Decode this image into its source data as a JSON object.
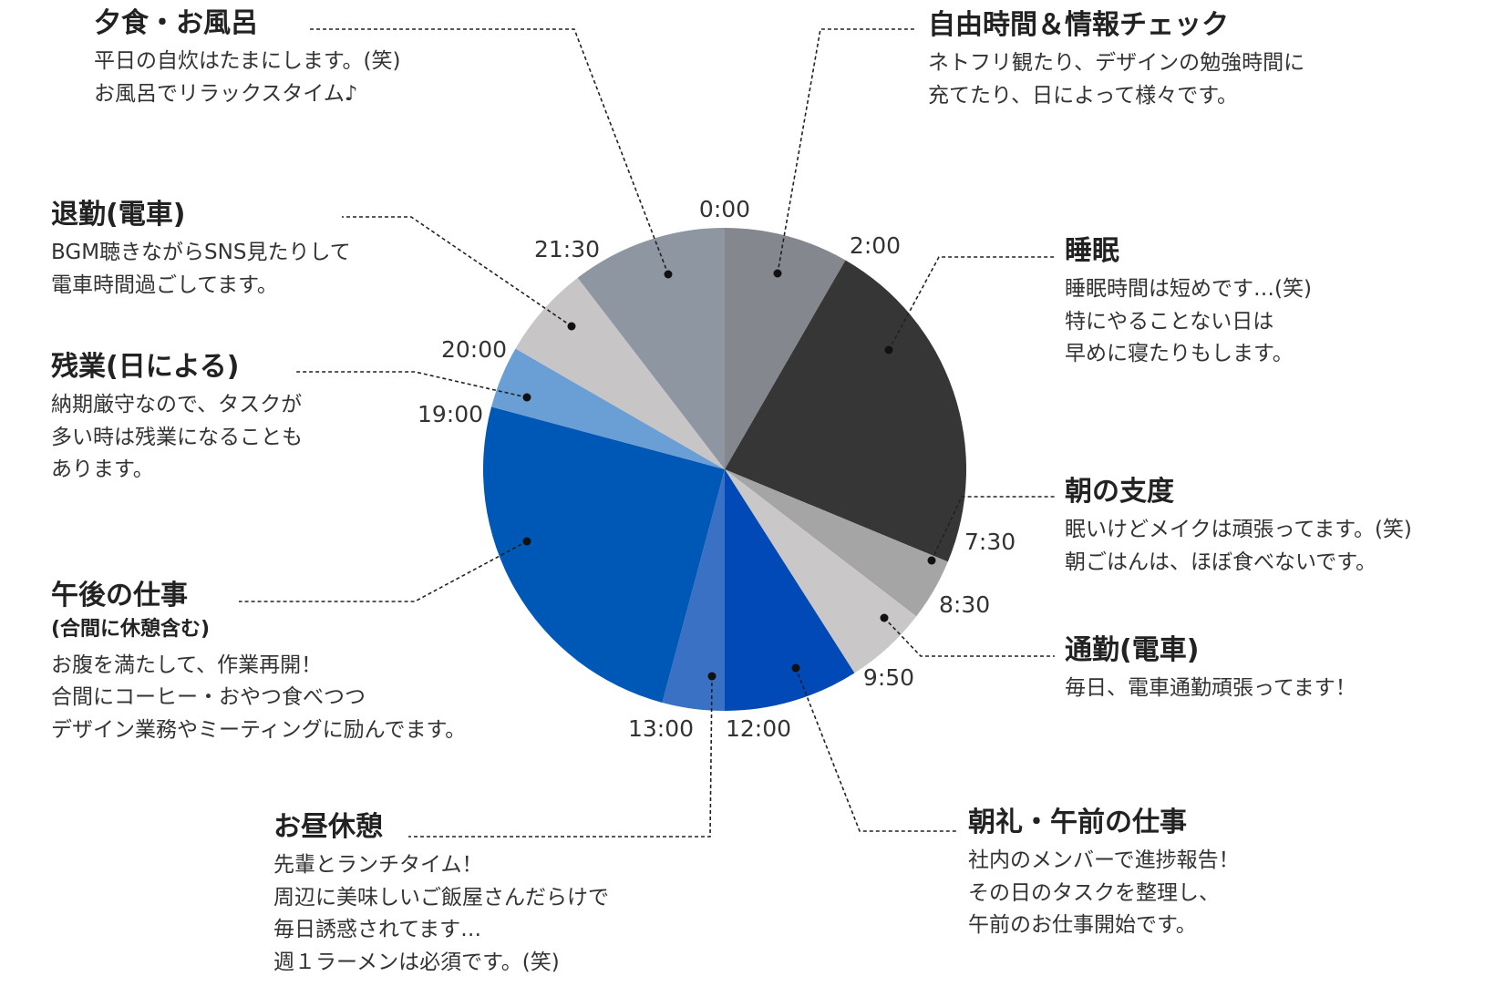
{
  "chart_data": {
    "type": "pie",
    "unit": "time of day",
    "segments": [
      {
        "start": "0:00",
        "end": "2:00",
        "title": "自由時間＆情報チェック",
        "subtitle": "",
        "body": [
          "ネトフリ観たり、デザインの勉強時間に",
          "充てたり、日によって様々です。"
        ],
        "color": "#84878d"
      },
      {
        "start": "2:00",
        "end": "7:30",
        "title": "睡眠",
        "subtitle": "",
        "body": [
          "睡眠時間は短めです…(笑)",
          "特にやることない日は",
          "早めに寝たりもします。"
        ],
        "color": "#363636"
      },
      {
        "start": "7:30",
        "end": "8:30",
        "title": "朝の支度",
        "subtitle": "",
        "body": [
          "眠いけどメイクは頑張ってます。(笑)",
          "朝ごはんは、ほぼ食べないです。"
        ],
        "color": "#a5a5a5"
      },
      {
        "start": "8:30",
        "end": "9:50",
        "title": "通勤(電車)",
        "subtitle": "",
        "body": [
          "毎日、電車通勤頑張ってます！"
        ],
        "color": "#cac7c9"
      },
      {
        "start": "9:50",
        "end": "12:00",
        "title": "朝礼・午前の仕事",
        "subtitle": "",
        "body": [
          "社内のメンバーで進捗報告！",
          "その日のタスクを整理し、",
          "午前のお仕事開始です。"
        ],
        "color": "#0049b7"
      },
      {
        "start": "12:00",
        "end": "13:00",
        "title": "お昼休憩",
        "subtitle": "",
        "body": [
          "先輩とランチタイム！",
          "周辺に美味しいご飯屋さんだらけで",
          "毎日誘惑されてます…",
          "週１ラーメンは必須です。(笑)"
        ],
        "color": "#3b71c5"
      },
      {
        "start": "13:00",
        "end": "19:00",
        "title": "午後の仕事",
        "subtitle": "(合間に休憩含む)",
        "body": [
          "お腹を満たして、作業再開！",
          "合間にコーヒー・おやつ食べつつ",
          "デザイン業務やミーティングに励んでます。"
        ],
        "color": "#0058b6"
      },
      {
        "start": "19:00",
        "end": "20:00",
        "title": "残業(日による)",
        "subtitle": "",
        "body": [
          "納期厳守なので、タスクが",
          "多い時は残業になることも",
          "あります。"
        ],
        "color": "#6a9fd5"
      },
      {
        "start": "20:00",
        "end": "21:30",
        "title": "退勤(電車)",
        "subtitle": "",
        "body": [
          "BGM聴きながらSNS見たりして",
          "電車時間過ごしてます。"
        ],
        "color": "#c8c5c7"
      },
      {
        "start": "21:30",
        "end": "24:00",
        "title": "夕食・お風呂",
        "subtitle": "",
        "body": [
          "平日の自炊はたまにします。(笑)",
          "お風呂でリラックスタイム♪"
        ],
        "color": "#8e96a2"
      }
    ],
    "tick_labels": [
      "0:00",
      "2:00",
      "7:30",
      "8:30",
      "9:50",
      "12:00",
      "13:00",
      "19:00",
      "20:00",
      "21:30"
    ]
  }
}
